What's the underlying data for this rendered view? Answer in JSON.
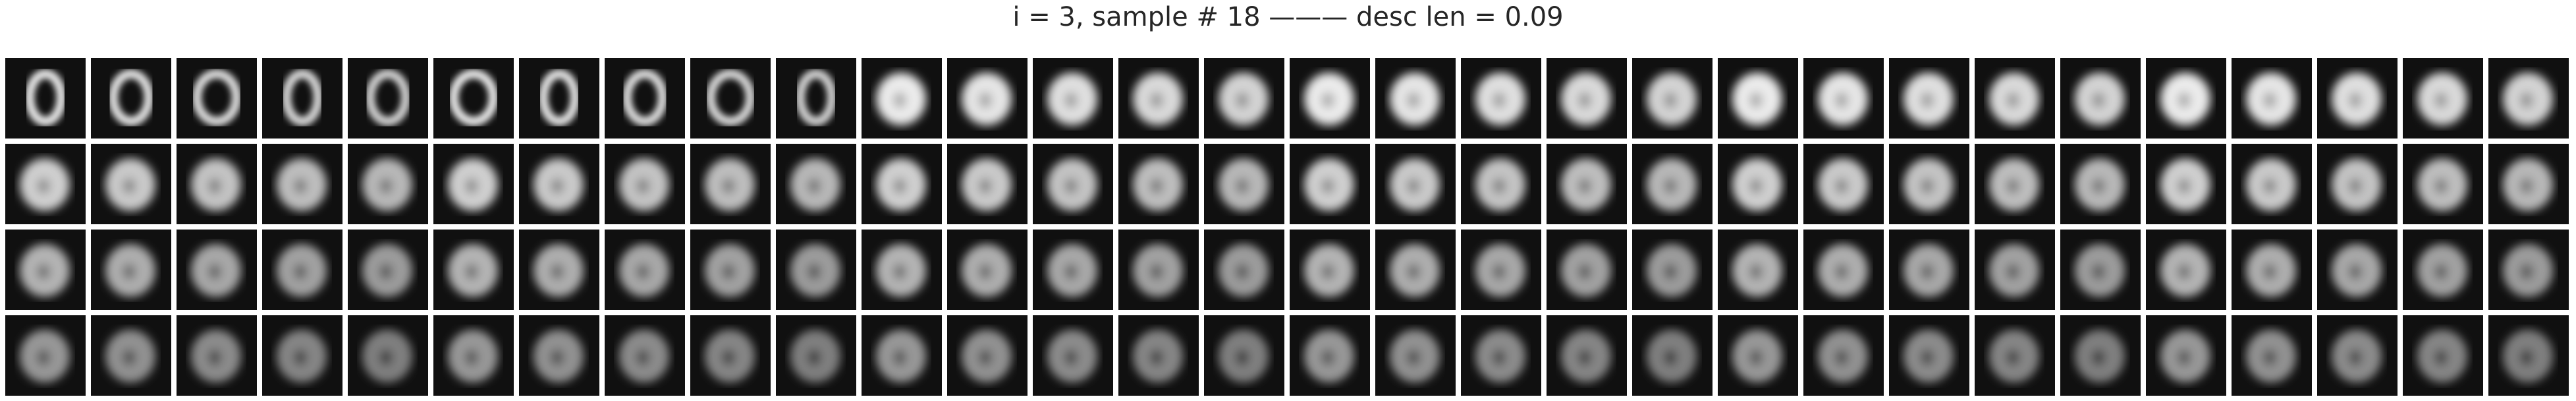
{
  "title": "i = 3, sample # 18 ——— desc len = 0.09",
  "grid": {
    "rows": 4,
    "columns": 30
  },
  "content": "grayscale digit-like image tiles (progression of generated samples)"
}
